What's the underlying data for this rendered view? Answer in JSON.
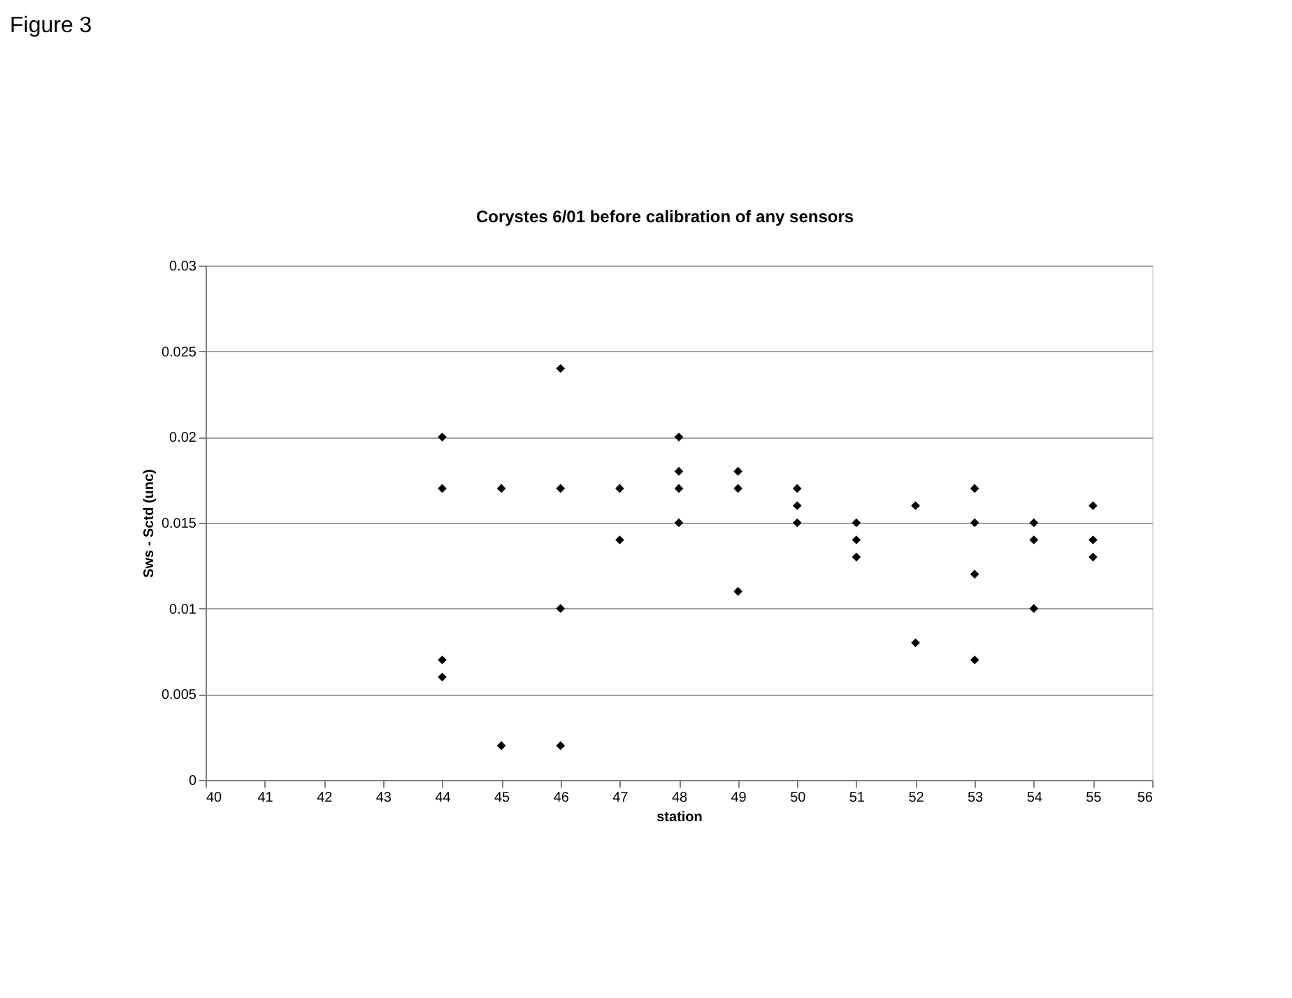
{
  "chart_data": {
    "type": "scatter",
    "title": "Corystes 6/01 before calibration of any sensors",
    "xlabel": "station",
    "ylabel": "Sws - Sctd (unc)",
    "annotations": [
      "Figure 3"
    ],
    "series": [
      {
        "color": "#000000",
        "x": [
          44,
          44,
          44,
          44,
          45,
          45,
          46,
          46,
          46,
          46,
          47,
          47,
          48,
          48,
          48,
          48,
          49,
          49,
          49,
          50,
          50,
          50,
          51,
          51,
          51,
          52,
          52,
          53,
          53,
          53,
          53,
          54,
          54,
          54,
          55,
          55,
          55
        ],
        "values": [
          0.02,
          0.017,
          0.007,
          0.006,
          0.017,
          0.002,
          0.024,
          0.017,
          0.01,
          0.002,
          0.017,
          0.014,
          0.02,
          0.018,
          0.017,
          0.015,
          0.018,
          0.017,
          0.011,
          0.017,
          0.016,
          0.015,
          0.015,
          0.014,
          0.013,
          0.016,
          0.008,
          0.017,
          0.015,
          0.012,
          0.007,
          0.015,
          0.014,
          0.01,
          0.016,
          0.014,
          0.013
        ]
      }
    ],
    "xlim": [
      40,
      56
    ],
    "xticks": [
      40,
      41,
      42,
      43,
      44,
      45,
      46,
      47,
      48,
      49,
      50,
      51,
      52,
      53,
      54,
      55,
      56
    ],
    "ylim": [
      0,
      0.03
    ],
    "yticks": [
      0,
      0.005,
      0.01,
      0.015,
      0.02,
      0.025,
      0.03
    ],
    "grid": "y",
    "marker": "diamond"
  }
}
